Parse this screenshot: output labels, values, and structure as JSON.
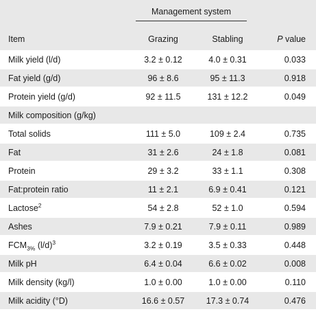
{
  "header": {
    "group_label": "Management system",
    "item_label": "Item",
    "grazing_label": "Grazing",
    "stabling_label": "Stabling",
    "p_label_italic": "P",
    "p_label_rest": " value"
  },
  "rows": [
    {
      "item": "Milk yield (l/d)",
      "grazing": "3.2 ± 0.12",
      "stabling": "4.0 ± 0.31",
      "p": "0.033"
    },
    {
      "item": "Fat yield (g/d)",
      "grazing": "96 ± 8.6",
      "stabling": "95 ± 11.3",
      "p": "0.918"
    },
    {
      "item": "Protein yield (g/d)",
      "grazing": "92 ± 11.5",
      "stabling": "131 ± 12.2",
      "p": "0.049"
    },
    {
      "item": "Milk composition (g/kg)",
      "grazing": "",
      "stabling": "",
      "p": ""
    },
    {
      "item": "Total solids",
      "grazing": "111 ± 5.0",
      "stabling": "109 ± 2.4",
      "p": "0.735"
    },
    {
      "item": "Fat",
      "grazing": "31 ± 2.6",
      "stabling": "24 ± 1.8",
      "p": "0.081"
    },
    {
      "item": "Protein",
      "grazing": "29 ± 3.2",
      "stabling": "33 ± 1.1",
      "p": "0.308"
    },
    {
      "item": "Fat:protein ratio",
      "grazing": "11 ± 2.1",
      "stabling": "6.9 ± 0.41",
      "p": "0.121"
    },
    {
      "item": "Lactose",
      "item_sup": "2",
      "grazing": "54 ± 2.8",
      "stabling": "52 ± 1.0",
      "p": "0.594"
    },
    {
      "item": "Ashes",
      "grazing": "7.9 ± 0.21",
      "stabling": "7.9 ± 0.11",
      "p": "0.989"
    },
    {
      "item": "FCM",
      "item_sub": "3%",
      "item_rest": " (l/d)",
      "item_sup": "3",
      "grazing": "3.2 ± 0.19",
      "stabling": "3.5 ± 0.33",
      "p": "0.448"
    },
    {
      "item": "Milk pH",
      "grazing": "6.4 ± 0.04",
      "stabling": "6.6 ± 0.02",
      "p": "0.008"
    },
    {
      "item": "Milk density (kg/l)",
      "grazing": "1.0 ± 0.00",
      "stabling": "1.0 ± 0.00",
      "p": "0.110"
    },
    {
      "item": "Milk acidity (°D)",
      "grazing": "16.6 ± 0.57",
      "stabling": "17.3 ± 0.74",
      "p": "0.476"
    }
  ]
}
